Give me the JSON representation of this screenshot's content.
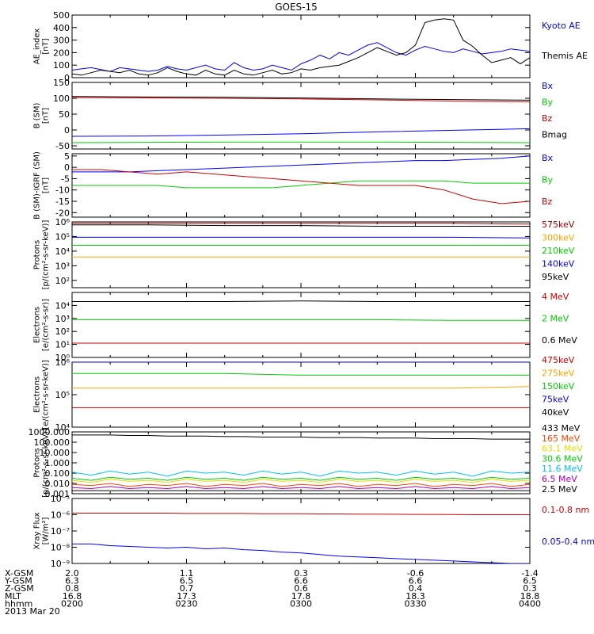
{
  "title": "GOES-15",
  "colors": {
    "black": "#000000",
    "blue": "#0000ff",
    "green": "#00d000",
    "red": "#d00000",
    "orange": "#ffa500",
    "yellow": "#e0e000",
    "cyan": "#00c0ff",
    "darkred": "#a00000",
    "purple": "#b000b0"
  },
  "chart_data": [
    {
      "type": "line",
      "name": "ae-index",
      "ylabel": [
        "AE_index",
        "[nT]"
      ],
      "ylim": [
        0,
        500
      ],
      "scale": "linear",
      "ticks": [
        0,
        100,
        200,
        300,
        400,
        500
      ],
      "tick_labels": [
        "0",
        "100",
        "200",
        "300",
        "400",
        "500"
      ],
      "x": [
        0.0,
        2.5,
        5,
        7.5,
        10,
        12.5,
        15,
        17.5,
        20,
        22.5,
        25,
        27.5,
        30,
        32.5,
        35,
        37.5,
        40,
        42.5,
        45,
        47.5,
        50,
        52.5,
        55,
        57.5,
        60,
        62.5,
        65,
        67.5,
        70,
        72.5,
        75,
        77.5,
        80,
        82.5,
        85,
        87.5,
        90,
        92.5,
        95,
        97.5,
        100,
        102.5,
        105,
        107.5,
        110,
        112.5,
        115,
        117.5,
        120
      ],
      "series": [
        {
          "name": "Kyoto AE",
          "color": "#0000ff",
          "values": [
            60,
            70,
            80,
            65,
            50,
            80,
            70,
            60,
            50,
            60,
            90,
            70,
            60,
            80,
            100,
            70,
            60,
            120,
            80,
            60,
            70,
            100,
            80,
            60,
            110,
            140,
            180,
            150,
            200,
            180,
            220,
            260,
            280,
            240,
            200,
            180,
            220,
            250,
            230,
            210,
            200,
            230,
            210,
            190,
            200,
            210,
            230,
            220,
            210
          ]
        },
        {
          "name": "Themis AE",
          "color": "#000000",
          "values": [
            30,
            20,
            40,
            60,
            50,
            40,
            60,
            30,
            20,
            40,
            80,
            50,
            30,
            20,
            60,
            30,
            20,
            60,
            30,
            20,
            40,
            60,
            30,
            40,
            70,
            60,
            80,
            90,
            100,
            130,
            160,
            200,
            240,
            210,
            180,
            200,
            260,
            440,
            460,
            470,
            460,
            300,
            250,
            180,
            120,
            140,
            160,
            110,
            160
          ]
        }
      ]
    },
    {
      "type": "line",
      "name": "b-sm",
      "ylabel": [
        "B (SM)",
        "[nT]"
      ],
      "ylim": [
        -60,
        150
      ],
      "scale": "linear",
      "ticks": [
        -50,
        0,
        50,
        100,
        150
      ],
      "tick_labels": [
        "-50",
        "0",
        "50",
        "100",
        "150"
      ],
      "x": [
        0,
        20,
        40,
        60,
        80,
        100,
        120
      ],
      "series": [
        {
          "name": "Bx",
          "color": "#0000ff",
          "values": [
            -20,
            -19,
            -16,
            -12,
            -6,
            -1,
            4
          ]
        },
        {
          "name": "By",
          "color": "#00d000",
          "values": [
            -40,
            -39,
            -38,
            -38,
            -38,
            -39,
            -40
          ]
        },
        {
          "name": "Bz",
          "color": "#d00000",
          "values": [
            102,
            101,
            100,
            98,
            95,
            91,
            89
          ]
        },
        {
          "name": "Bmag",
          "color": "#000000",
          "values": [
            106,
            104,
            103,
            101,
            98,
            96,
            94
          ]
        }
      ]
    },
    {
      "type": "line",
      "name": "b-sm-igrf",
      "ylabel": [
        "B (SM)-IGRF (SM)",
        "[nT]"
      ],
      "ylim": [
        -22,
        6
      ],
      "scale": "linear",
      "ticks": [
        -20,
        -15,
        -10,
        -5,
        0,
        5
      ],
      "tick_labels": [
        "-20",
        "-15",
        "-10",
        "-5",
        "0",
        "5"
      ],
      "x": [
        0,
        7.5,
        15,
        22.5,
        30,
        37.5,
        45,
        52.5,
        60,
        67.5,
        75,
        82.5,
        90,
        97.5,
        105,
        112.5,
        120
      ],
      "series": [
        {
          "name": "Bx",
          "color": "#0000ff",
          "values": [
            -2,
            -2,
            -2,
            -1.5,
            -1,
            -0.5,
            0,
            0.5,
            1,
            1.5,
            2,
            2.5,
            3,
            3,
            3.5,
            4,
            5
          ]
        },
        {
          "name": "By",
          "color": "#00d000",
          "values": [
            -8,
            -8,
            -8,
            -8,
            -9,
            -9,
            -9,
            -9,
            -8,
            -7,
            -6,
            -6,
            -6,
            -6,
            -7,
            -7,
            -7
          ]
        },
        {
          "name": "Bz",
          "color": "#d00000",
          "values": [
            -1,
            -1,
            -2,
            -3,
            -2,
            -3,
            -4,
            -5,
            -6,
            -7,
            -8,
            -8,
            -8,
            -10,
            -14,
            -16,
            -15
          ]
        }
      ]
    },
    {
      "type": "line",
      "name": "protons-low",
      "ylabel": [
        "Protons",
        "[p/(cm²-s-sr-keV)]"
      ],
      "ylim": [
        1.5,
        6
      ],
      "scale": "log",
      "ticks": [
        2,
        3,
        4,
        5,
        6
      ],
      "tick_labels": [
        "10²",
        "10³",
        "10⁴",
        "10⁵",
        "10⁶"
      ],
      "x": [
        0,
        20,
        40,
        60,
        80,
        100,
        120
      ],
      "series": [
        {
          "name": "575keV",
          "color": "#a00000",
          "values": [
            5.9,
            5.9,
            5.9,
            5.9,
            5.9,
            5.9,
            5.85
          ]
        },
        {
          "name": "300keV",
          "color": "#ffa500",
          "values": [
            3.6,
            3.6,
            3.6,
            3.6,
            3.6,
            3.6,
            3.6
          ]
        },
        {
          "name": "210keV",
          "color": "#00d000",
          "values": [
            4.4,
            4.4,
            4.4,
            4.4,
            4.4,
            4.4,
            4.4
          ]
        },
        {
          "name": "140keV",
          "color": "#0000ff",
          "values": [
            4.95,
            4.95,
            4.95,
            4.95,
            4.95,
            4.95,
            4.9
          ]
        },
        {
          "name": "95keV",
          "color": "#000000",
          "values": [
            5.8,
            5.8,
            5.75,
            5.75,
            5.7,
            5.7,
            5.7
          ]
        }
      ]
    },
    {
      "type": "line",
      "name": "electrons-mev",
      "ylabel": [
        "Electrons",
        "[e/(cm²-s-sr)]"
      ],
      "ylim": [
        0,
        5
      ],
      "scale": "log",
      "ticks": [
        0,
        1,
        2,
        3,
        4
      ],
      "tick_labels": [
        "10⁰",
        "10¹",
        "10²",
        "10³",
        "10⁴"
      ],
      "x": [
        0,
        20,
        40,
        60,
        80,
        100,
        120
      ],
      "series": [
        {
          "name": "4 MeV",
          "color": "#d00000",
          "values": [
            1.1,
            1.1,
            1.1,
            1.1,
            1.1,
            1.1,
            1.1
          ]
        },
        {
          "name": "2 MeV",
          "color": "#00d000",
          "values": [
            2.9,
            2.9,
            2.9,
            2.9,
            2.9,
            2.85,
            2.85
          ]
        },
        {
          "name": "0.6 MeV",
          "color": "#000000",
          "values": [
            4.3,
            4.3,
            4.3,
            4.35,
            4.3,
            4.3,
            4.3
          ]
        }
      ]
    },
    {
      "type": "line",
      "name": "electrons-kev",
      "ylabel": [
        "Electrons",
        "[e/(cm²-s-sr-keV)]"
      ],
      "ylim": [
        4,
        6
      ],
      "scale": "log",
      "ticks": [
        4,
        5,
        6
      ],
      "tick_labels": [
        "10⁴",
        "10⁵",
        "10⁶"
      ],
      "x": [
        0,
        20,
        40,
        60,
        80,
        100,
        120
      ],
      "series": [
        {
          "name": "475keV",
          "color": "#d00000",
          "values": [
            4.6,
            4.6,
            4.6,
            4.6,
            4.6,
            4.6,
            4.6
          ]
        },
        {
          "name": "275keV",
          "color": "#ffa500",
          "values": [
            5.2,
            5.2,
            5.2,
            5.2,
            5.2,
            5.2,
            5.25
          ]
        },
        {
          "name": "150keV",
          "color": "#00d000",
          "values": [
            5.65,
            5.65,
            5.65,
            5.6,
            5.6,
            5.6,
            5.6
          ]
        },
        {
          "name": "75keV",
          "color": "#0000ff",
          "values": [
            6.0,
            6.0,
            6.0,
            6.0,
            6.0,
            6.0,
            6.0
          ]
        },
        {
          "name": "40keV",
          "color": "#000000",
          "values": [
            6.1,
            6.1,
            6.1,
            6.1,
            6.1,
            6.1,
            6.1
          ]
        }
      ]
    },
    {
      "type": "line",
      "name": "protons-mev",
      "ylabel": [
        "Protons",
        "[p/(cm²-s-sr-keV)]"
      ],
      "ylim": [
        -3,
        3
      ],
      "scale": "log",
      "ticks": [
        -3,
        -2,
        -1,
        0,
        1,
        2,
        3
      ],
      "tick_labels": [
        "0.001",
        "0.010",
        "0.100",
        "1.000",
        "10.000",
        "100.000",
        "1000.000"
      ],
      "x": [
        0,
        5,
        10,
        15,
        20,
        25,
        30,
        35,
        40,
        45,
        50,
        55,
        60,
        65,
        70,
        75,
        80,
        85,
        90,
        95,
        100,
        105,
        110,
        115,
        120
      ],
      "series": [
        {
          "name": "433 MeV",
          "color": "#000000",
          "values": [
            2.7,
            2.7,
            2.7,
            2.65,
            2.65,
            2.6,
            2.6,
            2.6,
            2.55,
            2.55,
            2.5,
            2.5,
            2.5,
            2.45,
            2.45,
            2.45,
            2.4,
            2.4,
            2.4,
            2.35,
            2.35,
            2.35,
            2.3,
            2.3,
            2.3
          ]
        },
        {
          "name": "165 MeV",
          "color": "#ff4500",
          "values": [
            -2.1,
            -2.2,
            -2.0,
            -2.3,
            -2.1,
            -2.2,
            -2.0,
            -2.3,
            -2.1,
            -2.2,
            -2.0,
            -2.3,
            -2.1,
            -2.2,
            -2.0,
            -2.3,
            -2.1,
            -2.2,
            -2.0,
            -2.3,
            -2.1,
            -2.2,
            -2.0,
            -2.3,
            -2.1
          ]
        },
        {
          "name": "63.1 MeV",
          "color": "#e0e000",
          "values": [
            -1.7,
            -1.9,
            -1.6,
            -1.8,
            -1.7,
            -1.9,
            -1.6,
            -1.8,
            -1.7,
            -1.9,
            -1.6,
            -1.8,
            -1.7,
            -1.9,
            -1.6,
            -1.8,
            -1.7,
            -1.9,
            -1.6,
            -1.8,
            -1.7,
            -1.9,
            -1.6,
            -1.8,
            -1.7
          ]
        },
        {
          "name": "30.6 MeV",
          "color": "#00d000",
          "values": [
            -1.5,
            -1.7,
            -1.4,
            -1.6,
            -1.5,
            -1.7,
            -1.4,
            -1.6,
            -1.5,
            -1.7,
            -1.4,
            -1.6,
            -1.5,
            -1.7,
            -1.4,
            -1.6,
            -1.5,
            -1.7,
            -1.4,
            -1.6,
            -1.5,
            -1.7,
            -1.4,
            -1.6,
            -1.5
          ]
        },
        {
          "name": "11.6 MeV",
          "color": "#00c0ff",
          "values": [
            -0.9,
            -1.2,
            -0.8,
            -1.1,
            -0.9,
            -1.3,
            -0.8,
            -1.0,
            -0.9,
            -1.2,
            -0.8,
            -1.1,
            -0.9,
            -1.3,
            -0.8,
            -1.0,
            -0.9,
            -1.2,
            -0.8,
            -1.1,
            -0.9,
            -1.3,
            -0.8,
            -1.0,
            -0.9
          ]
        },
        {
          "name": "6.5 MeV",
          "color": "#b000b0",
          "values": [
            -2.4,
            -2.5,
            -2.3,
            -2.5,
            -2.4,
            -2.5,
            -2.3,
            -2.5,
            -2.4,
            -2.5,
            -2.3,
            -2.5,
            -2.4,
            -2.5,
            -2.3,
            -2.5,
            -2.4,
            -2.5,
            -2.3,
            -2.5,
            -2.4,
            -2.5,
            -2.3,
            -2.5,
            -2.4
          ]
        },
        {
          "name": "2.5 MeV",
          "color": "#000000",
          "values": [
            -2.7,
            -2.7,
            -2.7,
            -2.7,
            -2.7,
            -2.7,
            -2.7,
            -2.7,
            -2.7,
            -2.7,
            -2.7,
            -2.7,
            -2.7,
            -2.7,
            -2.7,
            -2.7,
            -2.7,
            -2.7,
            -2.7,
            -2.7,
            -2.7,
            -2.7,
            -2.7,
            -2.7,
            -2.7
          ]
        }
      ]
    },
    {
      "type": "line",
      "name": "xray",
      "ylabel": [
        "Xray Flux",
        "[W/m²]"
      ],
      "ylim": [
        -9,
        -5
      ],
      "scale": "log",
      "ticks": [
        -9,
        -8,
        -7,
        -6,
        -5
      ],
      "tick_labels": [
        "10⁻⁹",
        "10⁻⁸",
        "10⁻⁷",
        "10⁻⁶",
        "10⁻⁵"
      ],
      "x": [
        0,
        5,
        10,
        15,
        20,
        25,
        30,
        35,
        40,
        45,
        50,
        55,
        60,
        65,
        70,
        75,
        80,
        85,
        90,
        95,
        100,
        105,
        110,
        115,
        120
      ],
      "series": [
        {
          "name": "0.1-0.8 nm",
          "color": "#d00000",
          "values": [
            -5.9,
            -5.9,
            -5.9,
            -5.9,
            -5.9,
            -5.9,
            -5.92,
            -5.92,
            -5.92,
            -5.92,
            -5.94,
            -5.94,
            -5.94,
            -5.95,
            -5.95,
            -5.96,
            -5.96,
            -5.97,
            -5.98,
            -5.98,
            -5.99,
            -6.0,
            -6.0,
            -6.0,
            -6.0
          ]
        },
        {
          "name": "0.05-0.4 nm",
          "color": "#0000ff",
          "values": [
            -7.8,
            -7.8,
            -7.9,
            -7.95,
            -8.0,
            -8.05,
            -8.0,
            -8.1,
            -8.05,
            -8.15,
            -8.2,
            -8.3,
            -8.35,
            -8.45,
            -8.55,
            -8.6,
            -8.65,
            -8.7,
            -8.75,
            -8.8,
            -8.85,
            -8.9,
            -8.95,
            -9.0,
            -9.0
          ]
        }
      ]
    }
  ],
  "x_axis": {
    "ticks": [
      0,
      30,
      60,
      90,
      120
    ],
    "rows": [
      {
        "label": "X-GSM",
        "values": [
          "2.0",
          "1.1",
          "0.3",
          "-0.6",
          "-1.4"
        ]
      },
      {
        "label": "Y-GSM",
        "values": [
          "6.3",
          "6.5",
          "6.6",
          "6.6",
          "6.5"
        ]
      },
      {
        "label": "Z-GSM",
        "values": [
          "0.8",
          "0.7",
          "0.6",
          "0.4",
          "0.3"
        ]
      },
      {
        "label": "MLT",
        "values": [
          "16.8",
          "17.3",
          "17.8",
          "18.3",
          "18.8"
        ]
      },
      {
        "label": "hhmm",
        "values": [
          "0200",
          "0230",
          "0300",
          "0330",
          "0400"
        ]
      }
    ],
    "date": "2013 Mar 20"
  }
}
